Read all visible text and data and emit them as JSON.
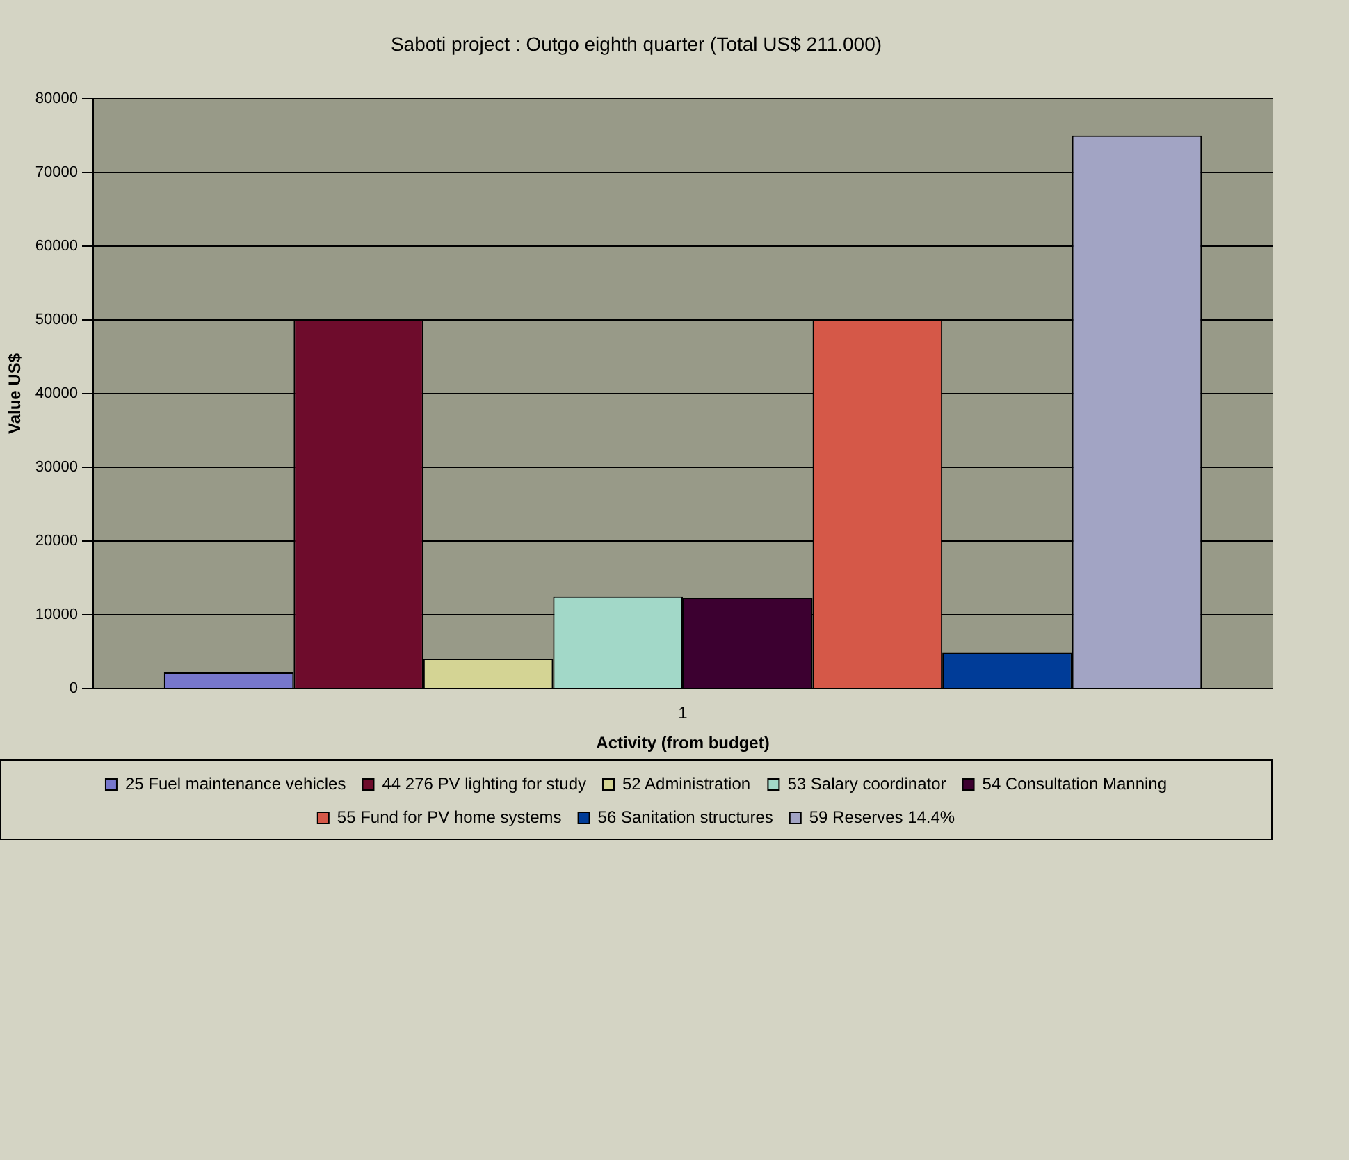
{
  "chart_data": {
    "type": "bar",
    "title": "Saboti project : Outgo eighth quarter (Total US$ 211.000)",
    "xlabel": "Activity (from budget)",
    "ylabel": "Value US$",
    "categories": [
      "1"
    ],
    "series": [
      {
        "name": "25 Fuel maintenance vehicles",
        "color": "#7777cc",
        "values": [
          2200
        ]
      },
      {
        "name": "44 276 PV lighting for study",
        "color": "#6e0c2c",
        "values": [
          50000
        ]
      },
      {
        "name": "52 Administration",
        "color": "#d4d494",
        "values": [
          4100
        ]
      },
      {
        "name": "53 Salary coordinator",
        "color": "#a2d8c8",
        "values": [
          12500
        ]
      },
      {
        "name": "54 Consultation Manning",
        "color": "#3c0030",
        "values": [
          12300
        ]
      },
      {
        "name": "55 Fund for PV home systems",
        "color": "#d55848",
        "values": [
          50000
        ]
      },
      {
        "name": "56 Sanitation structures",
        "color": "#003c98",
        "values": [
          4900
        ]
      },
      {
        "name": "59 Reserves 14.4%",
        "color": "#a2a4c4",
        "values": [
          75000
        ]
      }
    ],
    "ylim": [
      0,
      80000
    ],
    "yticks": [
      0,
      10000,
      20000,
      30000,
      40000,
      50000,
      60000,
      70000,
      80000
    ],
    "grid": "y",
    "legend": "bottom"
  }
}
